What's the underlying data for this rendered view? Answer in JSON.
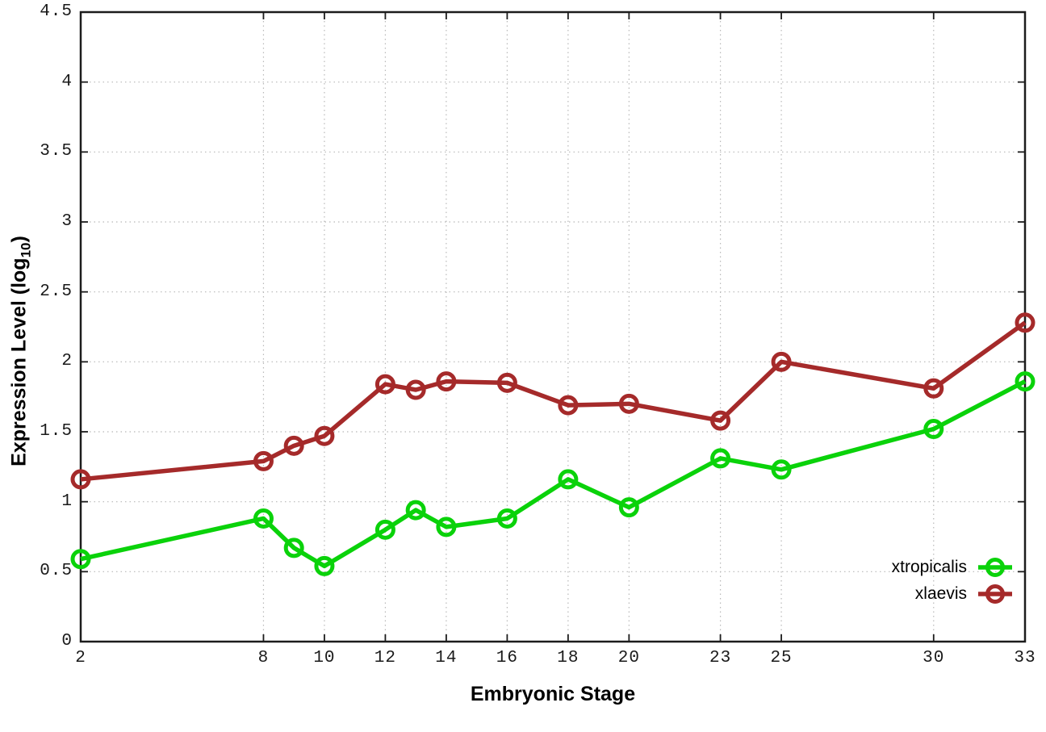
{
  "figure": {
    "background": "#ffffff",
    "axis_color": "#1c1c1c",
    "grid_color": "#b8b8b8"
  },
  "chart_data": {
    "type": "line",
    "title": "",
    "xlabel": "Embryonic Stage",
    "ylabel": "Expression Level (log10)",
    "ylabel_parts": {
      "prefix": "Expression Level (log",
      "sub": "10",
      "suffix": ")"
    },
    "x": [
      2,
      8,
      9,
      10,
      12,
      13,
      14,
      16,
      18,
      20,
      23,
      25,
      30,
      33
    ],
    "series": [
      {
        "name": "xtropicalis",
        "color": "#0ad20a",
        "values": [
          0.59,
          0.88,
          0.67,
          0.54,
          0.8,
          0.94,
          0.82,
          0.88,
          1.16,
          0.96,
          1.31,
          1.23,
          1.52,
          1.86
        ]
      },
      {
        "name": "xlaevis",
        "color": "#a52a2a",
        "values": [
          1.16,
          1.29,
          1.4,
          1.47,
          1.84,
          1.8,
          1.86,
          1.85,
          1.69,
          1.7,
          1.58,
          2.0,
          1.81,
          2.28
        ]
      }
    ],
    "xlim": [
      2,
      33
    ],
    "ylim": [
      0,
      4.5
    ],
    "xticks": [
      2,
      8,
      10,
      12,
      14,
      16,
      18,
      20,
      23,
      25,
      30,
      33
    ],
    "yticks": [
      0,
      0.5,
      1,
      1.5,
      2,
      2.5,
      3,
      3.5,
      4,
      4.5
    ],
    "ytick_labels": [
      "0",
      "0.5",
      "1",
      "1.5",
      "2",
      "2.5",
      "3",
      "3.5",
      "4",
      "4.5"
    ],
    "grid": true,
    "grid_style": "dotted",
    "legend_position": "bottom-right",
    "marker": "open-circle",
    "line_width": 5.5,
    "marker_radius": 10
  }
}
